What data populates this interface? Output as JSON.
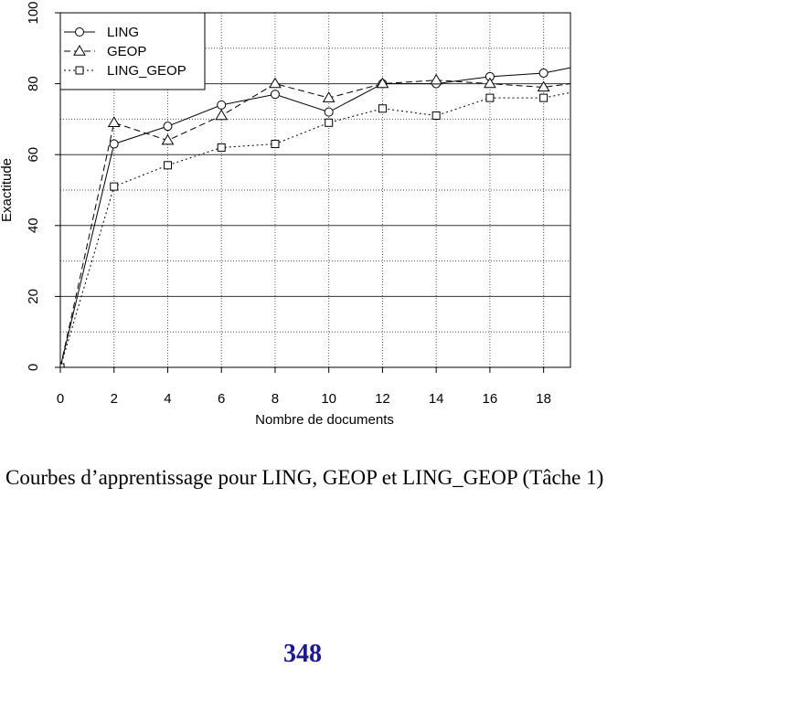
{
  "chart_data": {
    "type": "line",
    "xlabel": "Nombre de documents",
    "ylabel": "Exactitude",
    "xlim": [
      0,
      19
    ],
    "ylim": [
      0,
      100
    ],
    "xticks": [
      0,
      2,
      4,
      6,
      8,
      10,
      12,
      14,
      16,
      18
    ],
    "yticks": [
      0,
      20,
      40,
      60,
      80,
      100
    ],
    "grid": true,
    "legend_position": "top-left",
    "x": [
      0,
      2,
      4,
      6,
      8,
      10,
      12,
      14,
      16,
      18
    ],
    "series": [
      {
        "name": "LING",
        "marker": "circle",
        "line_style": "solid",
        "values": [
          0,
          63,
          68,
          74,
          77,
          72,
          80,
          80,
          82,
          83
        ],
        "tail_value_at_19": 84.5
      },
      {
        "name": "GEOP",
        "marker": "triangle",
        "line_style": "dashed",
        "values": [
          0,
          69,
          64,
          71,
          80,
          76,
          80,
          81,
          80,
          79
        ],
        "tail_value_at_19": 80
      },
      {
        "name": "LING_GEOP",
        "marker": "square",
        "line_style": "dotted",
        "values": [
          0,
          51,
          57,
          62,
          63,
          69,
          73,
          71,
          76,
          76
        ],
        "tail_value_at_19": 77.5
      }
    ],
    "colors": {
      "lines": "#000000",
      "grid": "#555555",
      "background": "#ffffff"
    }
  },
  "caption": "Courbes d’apprentissage pour LING, GEOP et LING_GEOP (Tâche 1)",
  "page_number": "348",
  "page_number_color": "#1a1a8c"
}
